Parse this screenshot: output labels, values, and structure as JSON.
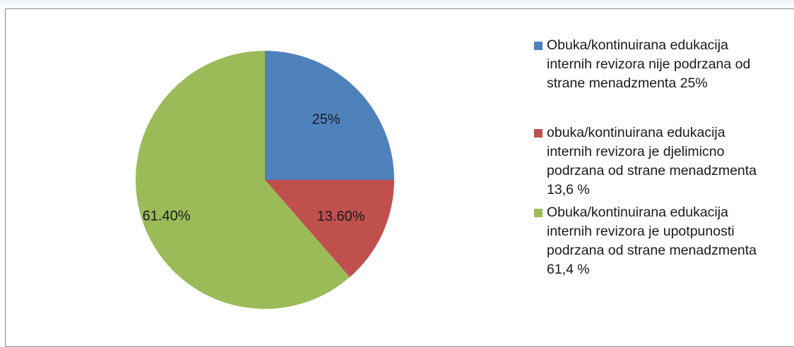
{
  "chart_data": {
    "type": "pie",
    "title": "",
    "slices": [
      {
        "name": "Obuka/kontinuirana edukacija internih revizora nije podrzana od strane menadzmenta  25%",
        "value": 25,
        "label": "25%",
        "color": "#4f81bd"
      },
      {
        "name": "obuka/kontinuirana edukacija internih revizora je djelimicno podrzana od strane menadzmenta 13,6 %",
        "value": 13.6,
        "label": "13.60%",
        "color": "#c0504d"
      },
      {
        "name": "Obuka/kontinuirana edukacija internih revizora je upotpunosti podrzana od strane menadzmenta 61,4 %",
        "value": 61.4,
        "label": "61.40%",
        "color": "#9bbb59"
      }
    ],
    "legend_position": "right",
    "start_angle_deg": 0,
    "direction": "clockwise"
  },
  "legend": {
    "items": [
      {
        "text": "Obuka/kontinuirana edukacija\ninternih revizora nije podrzana od\nstrane menadzmenta  25%",
        "color": "#4f81bd"
      },
      {
        "text": "obuka/kontinuirana edukacija\ninternih revizora je djelimicno\npodrzana od strane menadzmenta\n13,6 %",
        "color": "#c0504d"
      },
      {
        "text": "Obuka/kontinuirana edukacija\ninternih revizora je upotpunosti\npodrzana od strane menadzmenta\n61,4 %",
        "color": "#9bbb59"
      }
    ]
  }
}
